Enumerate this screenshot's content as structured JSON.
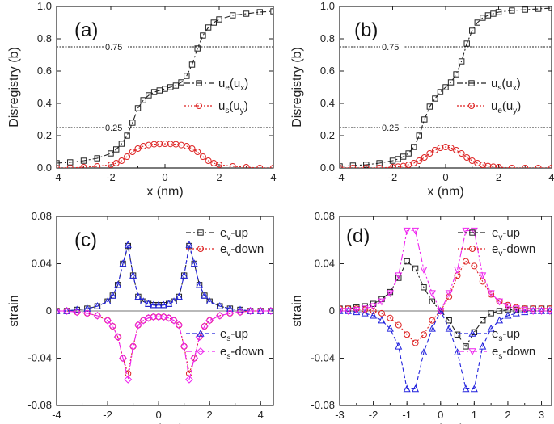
{
  "chart_data": [
    {
      "id": "a",
      "type": "line",
      "panel_label": "(a)",
      "xlabel": "x (nm)",
      "ylabel": "Disregistry (b)",
      "xlim": [
        -4,
        4
      ],
      "ylim": [
        0,
        1.0
      ],
      "xticks": [
        -4,
        -2,
        0,
        2,
        4
      ],
      "yticks": [
        0.0,
        0.2,
        0.4,
        0.6,
        0.8,
        1.0
      ],
      "ytick_labels": [
        "0.0",
        "0.2",
        "0.4",
        "0.6",
        "0.8",
        "1.0"
      ],
      "ref_lines": [
        {
          "y": 0.75,
          "label": "0.75"
        },
        {
          "y": 0.25,
          "label": "0.25"
        }
      ],
      "series": [
        {
          "name": "ue(ux)",
          "legend_main": "u",
          "legend_sub": "e",
          "legend_arg": "u",
          "legend_argsub": "x",
          "color": "#222222",
          "marker": "square",
          "dash": "7,3,2,3",
          "x": [
            -4.0,
            -3.5,
            -3.0,
            -2.5,
            -2.0,
            -1.8,
            -1.6,
            -1.4,
            -1.2,
            -1.0,
            -0.8,
            -0.6,
            -0.4,
            -0.2,
            0.0,
            0.2,
            0.4,
            0.6,
            0.8,
            1.0,
            1.2,
            1.4,
            1.6,
            1.8,
            2.0,
            2.5,
            3.0,
            3.5,
            4.0
          ],
          "y": [
            0.03,
            0.035,
            0.045,
            0.06,
            0.09,
            0.115,
            0.15,
            0.2,
            0.28,
            0.37,
            0.42,
            0.45,
            0.47,
            0.48,
            0.49,
            0.5,
            0.51,
            0.53,
            0.57,
            0.64,
            0.74,
            0.82,
            0.87,
            0.9,
            0.92,
            0.945,
            0.955,
            0.965,
            0.97
          ]
        },
        {
          "name": "us(uy)",
          "legend_main": "u",
          "legend_sub": "s",
          "legend_arg": "u",
          "legend_argsub": "y",
          "color": "#dd2222",
          "marker": "circle",
          "dash": "2,2",
          "x": [
            -4.0,
            -3.5,
            -3.0,
            -2.5,
            -2.0,
            -1.8,
            -1.6,
            -1.4,
            -1.2,
            -1.0,
            -0.8,
            -0.6,
            -0.4,
            -0.2,
            0.0,
            0.2,
            0.4,
            0.6,
            0.8,
            1.0,
            1.2,
            1.4,
            1.6,
            1.8,
            2.0,
            2.5,
            3.0,
            3.5,
            4.0
          ],
          "y": [
            0.0,
            0.0,
            0.005,
            0.01,
            0.02,
            0.03,
            0.045,
            0.07,
            0.1,
            0.12,
            0.135,
            0.142,
            0.147,
            0.149,
            0.15,
            0.149,
            0.147,
            0.142,
            0.135,
            0.12,
            0.1,
            0.07,
            0.045,
            0.03,
            0.02,
            0.01,
            0.005,
            0.0,
            0.0
          ]
        }
      ]
    },
    {
      "id": "b",
      "type": "line",
      "panel_label": "(b)",
      "xlabel": "x (nm)",
      "ylabel": "Disregistry (b)",
      "xlim": [
        -4,
        4
      ],
      "ylim": [
        0,
        1.0
      ],
      "xticks": [
        -4,
        -2,
        0,
        2,
        4
      ],
      "yticks": [
        0.0,
        0.2,
        0.4,
        0.6,
        0.8,
        1.0
      ],
      "ytick_labels": [
        "0.0",
        "0.2",
        "0.4",
        "0.6",
        "0.8",
        "1.0"
      ],
      "ref_lines": [
        {
          "y": 0.75,
          "label": "0.75"
        },
        {
          "y": 0.25,
          "label": "0.25"
        }
      ],
      "series": [
        {
          "name": "us(ux)",
          "legend_main": "u",
          "legend_sub": "s",
          "legend_arg": "u",
          "legend_argsub": "x",
          "color": "#222222",
          "marker": "square",
          "dash": "7,3,2,3",
          "x": [
            -4.0,
            -3.5,
            -3.0,
            -2.5,
            -2.0,
            -1.8,
            -1.6,
            -1.4,
            -1.2,
            -1.0,
            -0.8,
            -0.6,
            -0.4,
            -0.2,
            0.0,
            0.2,
            0.4,
            0.6,
            0.8,
            1.0,
            1.2,
            1.4,
            1.6,
            1.8,
            2.0,
            2.5,
            3.0,
            3.5,
            4.0
          ],
          "y": [
            0.01,
            0.015,
            0.02,
            0.03,
            0.045,
            0.055,
            0.07,
            0.09,
            0.13,
            0.2,
            0.3,
            0.38,
            0.43,
            0.47,
            0.5,
            0.53,
            0.58,
            0.66,
            0.77,
            0.85,
            0.9,
            0.93,
            0.945,
            0.955,
            0.965,
            0.975,
            0.98,
            0.985,
            0.99
          ]
        },
        {
          "name": "ue(uy)",
          "legend_main": "u",
          "legend_sub": "e",
          "legend_arg": "u",
          "legend_argsub": "y",
          "color": "#dd2222",
          "marker": "circle",
          "dash": "2,2",
          "x": [
            -4.0,
            -3.5,
            -3.0,
            -2.5,
            -2.0,
            -1.8,
            -1.6,
            -1.4,
            -1.2,
            -1.0,
            -0.8,
            -0.6,
            -0.4,
            -0.2,
            0.0,
            0.2,
            0.4,
            0.6,
            0.8,
            1.0,
            1.2,
            1.4,
            1.6,
            1.8,
            2.0,
            2.5,
            3.0,
            3.5,
            4.0
          ],
          "y": [
            0.0,
            0.0,
            0.0,
            0.0,
            0.005,
            0.008,
            0.012,
            0.02,
            0.03,
            0.045,
            0.065,
            0.09,
            0.11,
            0.125,
            0.13,
            0.125,
            0.11,
            0.09,
            0.065,
            0.045,
            0.03,
            0.02,
            0.012,
            0.008,
            0.005,
            0.0,
            0.0,
            0.0,
            0.0
          ]
        }
      ]
    },
    {
      "id": "c",
      "type": "line",
      "panel_label": "(c)",
      "xlabel": "x (nm)",
      "ylabel": "strain",
      "xlim": [
        -4,
        4.5
      ],
      "ylim": [
        -0.08,
        0.08
      ],
      "xticks": [
        -4,
        -2,
        0,
        2,
        4
      ],
      "yticks": [
        -0.08,
        -0.04,
        0,
        0.04,
        0.08
      ],
      "ytick_labels": [
        "-0.08",
        "-0.04",
        "0",
        "0.04",
        "0.08"
      ],
      "ref_lines": [],
      "series": [
        {
          "name": "ev-up",
          "legend_main": "e",
          "legend_sub": "v",
          "legend_suffix": "-up",
          "color": "#222222",
          "marker": "square",
          "dash": "6,3,2,3",
          "x": [
            -4.0,
            -3.6,
            -3.2,
            -2.8,
            -2.4,
            -2.0,
            -1.8,
            -1.6,
            -1.4,
            -1.2,
            -1.0,
            -0.8,
            -0.6,
            -0.4,
            -0.2,
            0.0,
            0.2,
            0.4,
            0.6,
            0.8,
            1.0,
            1.2,
            1.4,
            1.6,
            1.8,
            2.0,
            2.4,
            2.8,
            3.2,
            3.6,
            4.0,
            4.4
          ],
          "y": [
            0.0,
            0.0,
            0.001,
            0.002,
            0.004,
            0.008,
            0.013,
            0.022,
            0.04,
            0.055,
            0.03,
            0.012,
            0.008,
            0.006,
            0.005,
            0.005,
            0.005,
            0.006,
            0.008,
            0.012,
            0.03,
            0.055,
            0.04,
            0.022,
            0.013,
            0.008,
            0.004,
            0.002,
            0.001,
            0.0,
            0.0,
            0.0
          ]
        },
        {
          "name": "ev-down",
          "legend_main": "e",
          "legend_sub": "v",
          "legend_suffix": "-down",
          "color": "#dd2222",
          "marker": "circle",
          "dash": "2,2",
          "x": [
            -4.0,
            -3.6,
            -3.2,
            -2.8,
            -2.4,
            -2.0,
            -1.8,
            -1.6,
            -1.4,
            -1.2,
            -1.0,
            -0.8,
            -0.6,
            -0.4,
            -0.2,
            0.0,
            0.2,
            0.4,
            0.6,
            0.8,
            1.0,
            1.2,
            1.4,
            1.6,
            1.8,
            2.0,
            2.4,
            2.8,
            3.2,
            3.6,
            4.0,
            4.4
          ],
          "y": [
            0.0,
            0.0,
            -0.001,
            -0.002,
            -0.004,
            -0.008,
            -0.013,
            -0.022,
            -0.04,
            -0.053,
            -0.03,
            -0.012,
            -0.008,
            -0.006,
            -0.005,
            -0.005,
            -0.005,
            -0.006,
            -0.008,
            -0.012,
            -0.03,
            -0.053,
            -0.04,
            -0.022,
            -0.013,
            -0.008,
            -0.004,
            -0.002,
            -0.001,
            0.0,
            0.0,
            0.0
          ]
        },
        {
          "name": "es-up",
          "legend_main": "e",
          "legend_sub": "s",
          "legend_suffix": "-up",
          "color": "#2222dd",
          "marker": "triangle-up",
          "dash": "5,3",
          "x": [
            -4.0,
            -3.6,
            -3.2,
            -2.8,
            -2.4,
            -2.0,
            -1.8,
            -1.6,
            -1.4,
            -1.2,
            -1.0,
            -0.8,
            -0.6,
            -0.4,
            -0.2,
            0.0,
            0.2,
            0.4,
            0.6,
            0.8,
            1.0,
            1.2,
            1.4,
            1.6,
            1.8,
            2.0,
            2.4,
            2.8,
            3.2,
            3.6,
            4.0,
            4.4
          ],
          "y": [
            0.0,
            0.0,
            0.001,
            0.002,
            0.004,
            0.008,
            0.013,
            0.022,
            0.04,
            0.056,
            0.03,
            0.012,
            0.008,
            0.006,
            0.005,
            0.005,
            0.005,
            0.006,
            0.008,
            0.012,
            0.03,
            0.056,
            0.04,
            0.022,
            0.013,
            0.008,
            0.004,
            0.002,
            0.001,
            0.0,
            0.0,
            0.0
          ]
        },
        {
          "name": "es-down",
          "legend_main": "e",
          "legend_sub": "s",
          "legend_suffix": "-down",
          "color": "#ee22ee",
          "marker": "diamond",
          "dash": "8,3,2,3",
          "x": [
            -4.0,
            -3.6,
            -3.2,
            -2.8,
            -2.4,
            -2.0,
            -1.8,
            -1.6,
            -1.4,
            -1.2,
            -1.0,
            -0.8,
            -0.6,
            -0.4,
            -0.2,
            0.0,
            0.2,
            0.4,
            0.6,
            0.8,
            1.0,
            1.2,
            1.4,
            1.6,
            1.8,
            2.0,
            2.4,
            2.8,
            3.2,
            3.6,
            4.0,
            4.4
          ],
          "y": [
            0.0,
            0.0,
            -0.001,
            -0.002,
            -0.004,
            -0.008,
            -0.013,
            -0.022,
            -0.04,
            -0.058,
            -0.03,
            -0.012,
            -0.008,
            -0.006,
            -0.005,
            -0.005,
            -0.005,
            -0.006,
            -0.008,
            -0.012,
            -0.03,
            -0.058,
            -0.04,
            -0.022,
            -0.013,
            -0.008,
            -0.004,
            -0.002,
            -0.001,
            0.0,
            0.0,
            0.0
          ]
        }
      ]
    },
    {
      "id": "d",
      "type": "line",
      "panel_label": "(d)",
      "xlabel": "x (nm)",
      "ylabel": "strain",
      "xlim": [
        -3,
        3.3
      ],
      "ylim": [
        -0.08,
        0.08
      ],
      "xticks": [
        -3,
        -2,
        -1,
        0,
        1,
        2,
        3
      ],
      "yticks": [
        -0.08,
        -0.04,
        0,
        0.04,
        0.08
      ],
      "ytick_labels": [
        "-0.08",
        "-0.04",
        "0",
        "0.04",
        "0.08"
      ],
      "ref_lines": [],
      "series": [
        {
          "name": "ev-up",
          "legend_main": "e",
          "legend_sub": "v",
          "legend_suffix": "-up",
          "color": "#222222",
          "marker": "square",
          "dash": "6,3,2,3",
          "x": [
            -3.0,
            -2.75,
            -2.5,
            -2.25,
            -2.0,
            -1.75,
            -1.5,
            -1.25,
            -1.0,
            -0.75,
            -0.5,
            -0.25,
            0.0,
            0.25,
            0.5,
            0.75,
            1.0,
            1.25,
            1.5,
            1.75,
            2.0,
            2.25,
            2.5,
            2.75,
            3.0,
            3.25
          ],
          "y": [
            0.002,
            0.002,
            0.003,
            0.004,
            0.006,
            0.01,
            0.016,
            0.028,
            0.042,
            0.036,
            0.02,
            0.008,
            0.0,
            -0.008,
            -0.02,
            -0.03,
            -0.018,
            -0.008,
            -0.002,
            0.0,
            0.001,
            0.001,
            0.002,
            0.002,
            0.002,
            0.002
          ]
        },
        {
          "name": "ev-down",
          "legend_main": "e",
          "legend_sub": "v",
          "legend_suffix": "-down",
          "color": "#dd2222",
          "marker": "circle",
          "dash": "2,2",
          "x": [
            -3.0,
            -2.75,
            -2.5,
            -2.25,
            -2.0,
            -1.75,
            -1.5,
            -1.25,
            -1.0,
            -0.75,
            -0.5,
            -0.25,
            0.0,
            0.25,
            0.5,
            0.75,
            1.0,
            1.25,
            1.5,
            1.75,
            2.0,
            2.25,
            2.5,
            2.75,
            3.0,
            3.25
          ],
          "y": [
            0.002,
            0.002,
            0.002,
            0.001,
            0.0,
            -0.002,
            -0.006,
            -0.012,
            -0.02,
            -0.027,
            -0.02,
            -0.008,
            0.0,
            0.012,
            0.03,
            0.042,
            0.038,
            0.025,
            0.014,
            0.008,
            0.005,
            0.003,
            0.002,
            0.002,
            0.002,
            0.002
          ]
        },
        {
          "name": "es-up",
          "legend_main": "e",
          "legend_sub": "s",
          "legend_suffix": "-up",
          "color": "#2222dd",
          "marker": "triangle-up",
          "dash": "5,3",
          "x": [
            -3.0,
            -2.75,
            -2.5,
            -2.25,
            -2.0,
            -1.75,
            -1.5,
            -1.25,
            -1.0,
            -0.75,
            -0.5,
            -0.25,
            0.0,
            0.25,
            0.5,
            0.75,
            1.0,
            1.25,
            1.5,
            1.75,
            2.0,
            2.25,
            2.5,
            2.75,
            3.0,
            3.25
          ],
          "y": [
            0.0,
            0.0,
            -0.001,
            -0.002,
            -0.004,
            -0.008,
            -0.015,
            -0.03,
            -0.066,
            -0.066,
            -0.035,
            -0.015,
            0.0,
            -0.015,
            -0.035,
            -0.066,
            -0.066,
            -0.03,
            -0.015,
            -0.008,
            -0.004,
            -0.002,
            -0.001,
            0.0,
            0.0,
            0.0
          ]
        },
        {
          "name": "es-down",
          "legend_main": "e",
          "legend_sub": "s",
          "legend_suffix": "-down",
          "color": "#ee22ee",
          "marker": "triangle-down",
          "dash": "8,3,2,3",
          "x": [
            -3.0,
            -2.75,
            -2.5,
            -2.25,
            -2.0,
            -1.75,
            -1.5,
            -1.25,
            -1.0,
            -0.75,
            -0.5,
            -0.25,
            0.0,
            0.25,
            0.5,
            0.75,
            1.0,
            1.25,
            1.5,
            1.75,
            2.0,
            2.25,
            2.5,
            2.75,
            3.0,
            3.25
          ],
          "y": [
            0.0,
            0.0,
            0.001,
            0.002,
            0.004,
            0.008,
            0.015,
            0.03,
            0.068,
            0.068,
            0.035,
            0.015,
            0.0,
            0.015,
            0.035,
            0.068,
            0.068,
            0.03,
            0.015,
            0.008,
            0.004,
            0.002,
            0.001,
            0.0,
            0.0,
            0.0
          ]
        }
      ]
    }
  ]
}
